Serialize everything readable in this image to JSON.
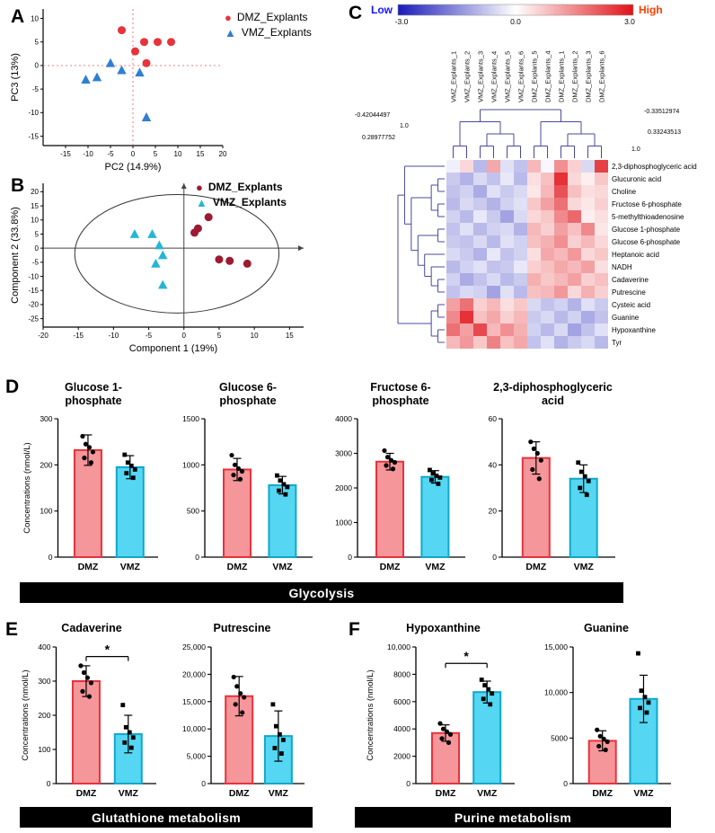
{
  "panels": {
    "a": "A",
    "b": "B",
    "c": "C",
    "d": "D",
    "e": "E",
    "f": "F"
  },
  "banners": {
    "glycolysis": "Glycolysis",
    "glutathione": "Glutathione metabolism",
    "purine": "Purine metabolism"
  },
  "colors": {
    "pca_dmz": "#e8323c",
    "pca_vmz": "#2f7fd1",
    "plsda_dmz": "#9b1b30",
    "plsda_vmz": "#25b6d2",
    "bar_dmz_fill": "#f5969a",
    "bar_dmz_stroke": "#e8323c",
    "bar_vmz_fill": "#55d6f2",
    "bar_vmz_stroke": "#0fa8cc",
    "heat_low": "#1a1ab8",
    "heat_high": "#e01218",
    "low_label": "#1414ff",
    "high_label": "#ff3d00",
    "dendrogram": "#4848a0"
  },
  "chart_data": [
    {
      "id": "pca",
      "type": "scatter",
      "xlabel": "PC2 (14.9%)",
      "ylabel": "PC3 (13%)",
      "xlim": [
        -20,
        20
      ],
      "ylim": [
        -17,
        12
      ],
      "xticks": [
        -15,
        -10,
        -5,
        0,
        5,
        10,
        15,
        20
      ],
      "yticks": [
        -15,
        -10,
        -5,
        0,
        5,
        10
      ],
      "origin": "dashed-red",
      "series": [
        {
          "name": "DMZ_Explants",
          "marker": "circle",
          "color": "#e8323c",
          "points": [
            [
              -2.5,
              7.5
            ],
            [
              0.5,
              3
            ],
            [
              2.5,
              5
            ],
            [
              5.5,
              5
            ],
            [
              8.5,
              5
            ],
            [
              3,
              0.5
            ]
          ]
        },
        {
          "name": "VMZ_Explants",
          "marker": "triangle",
          "color": "#2f7fd1",
          "points": [
            [
              -10.5,
              -3
            ],
            [
              -8,
              -2.5
            ],
            [
              -5,
              0.5
            ],
            [
              -2.5,
              -1
            ],
            [
              1.5,
              -1.5
            ],
            [
              3,
              -11
            ]
          ]
        }
      ]
    },
    {
      "id": "plsda",
      "type": "scatter",
      "xlabel": "Component 1 (19%)",
      "ylabel": "Component 2 (33.8%)",
      "xlim": [
        -20,
        17
      ],
      "ylim": [
        -28,
        23
      ],
      "xticks": [
        -20,
        -15,
        -10,
        -5,
        0,
        5,
        10,
        15
      ],
      "yticks": [
        -25,
        -20,
        -15,
        -10,
        -5,
        0,
        5,
        10,
        15,
        20
      ],
      "origin": "solid-gray",
      "ellipse": {
        "cx": -1,
        "cy": -2,
        "rx": 14.5,
        "ry": 21
      },
      "series": [
        {
          "name": "DMZ_Explants",
          "marker": "circle",
          "color": "#9b1b30",
          "points": [
            [
              1.5,
              5.5
            ],
            [
              2,
              7
            ],
            [
              3.5,
              11
            ],
            [
              5,
              -4
            ],
            [
              6.5,
              -4.5
            ],
            [
              9,
              -5.5
            ]
          ]
        },
        {
          "name": "VMZ_Explants",
          "marker": "triangle",
          "color": "#25b6d2",
          "points": [
            [
              -7,
              5
            ],
            [
              -4.5,
              5
            ],
            [
              -3.5,
              1
            ],
            [
              -3,
              -2.5
            ],
            [
              -4,
              -5.5
            ],
            [
              -3,
              -13
            ]
          ]
        }
      ]
    },
    {
      "id": "heatmap",
      "type": "heatmap",
      "colorbar": {
        "low_label": "Low",
        "high_label": "High",
        "ticks": [
          "-3.0",
          "0.0",
          "3.0"
        ],
        "min": -3,
        "max": 3
      },
      "columns": [
        "VMZ_Explants_1",
        "VMZ_Explants_2",
        "VMZ_Explants_3",
        "VMZ_Explants_4",
        "VMZ_Explants_5",
        "VMZ_Explants_6",
        "DMZ_Explants_5",
        "DMZ_Explants_4",
        "DMZ_Explants_1",
        "DMZ_Explants_2",
        "DMZ_Explants_3",
        "DMZ_Explants_6"
      ],
      "rows": [
        "2,3-diphosphoglyceric acid",
        "Glucuronic acid",
        "Choline",
        "Fructose 6-phosphate",
        "5-methylthioadenosine",
        "Glucose 1-phosphate",
        "Glucose 6-phosphate",
        "Heptanoic acid",
        "NADH",
        "Cadaverine",
        "Putrescine",
        "Cysteic acid",
        "Guanine",
        "Hypoxanthine",
        "Tyr"
      ],
      "matrix": [
        [
          -0.2,
          0.5,
          -0.9,
          1.1,
          -0.4,
          -0.8,
          0.9,
          -0.1,
          1.4,
          0.6,
          -0.5,
          2.4
        ],
        [
          -0.7,
          -1.0,
          -0.5,
          -0.8,
          -0.3,
          -0.9,
          0.4,
          0.8,
          2.6,
          0.5,
          0.2,
          0.7
        ],
        [
          -0.8,
          -0.6,
          -1.1,
          -0.4,
          -0.7,
          -0.5,
          0.3,
          0.9,
          2.2,
          0.8,
          0.4,
          0.5
        ],
        [
          -0.9,
          -0.5,
          -0.7,
          -1.0,
          -0.6,
          -0.4,
          0.7,
          1.2,
          1.8,
          0.5,
          0.3,
          0.6
        ],
        [
          -0.6,
          -0.9,
          -0.3,
          -0.7,
          -1.2,
          -0.5,
          0.5,
          0.7,
          1.5,
          1.9,
          0.2,
          0.4
        ],
        [
          -0.8,
          -0.4,
          -0.9,
          -0.6,
          -0.5,
          -1.0,
          0.9,
          0.6,
          1.2,
          0.8,
          1.5,
          0.3
        ],
        [
          -0.7,
          -0.8,
          -0.5,
          -0.9,
          -0.4,
          -0.6,
          0.8,
          1.0,
          1.4,
          0.6,
          0.9,
          0.5
        ],
        [
          -0.5,
          -0.7,
          -1.0,
          -0.3,
          -0.8,
          -0.6,
          0.4,
          1.1,
          0.9,
          1.3,
          0.5,
          0.7
        ],
        [
          -0.9,
          -0.6,
          -0.4,
          -0.8,
          -0.7,
          -0.3,
          0.6,
          0.8,
          1.1,
          0.9,
          1.2,
          0.4
        ],
        [
          -0.6,
          -1.1,
          -0.8,
          -0.5,
          -0.9,
          -0.7,
          1.0,
          0.7,
          0.9,
          1.2,
          0.6,
          0.8
        ],
        [
          -0.8,
          -0.5,
          -0.6,
          -1.2,
          -0.4,
          -0.9,
          0.8,
          0.9,
          1.3,
          0.5,
          1.0,
          0.6
        ],
        [
          1.2,
          1.8,
          0.6,
          0.9,
          0.4,
          0.7,
          -0.5,
          -0.8,
          -0.6,
          -1.0,
          -0.4,
          -0.7
        ],
        [
          1.5,
          2.6,
          0.8,
          1.1,
          0.6,
          0.9,
          -0.7,
          -0.5,
          -0.9,
          -0.6,
          -1.1,
          -0.8
        ],
        [
          1.8,
          1.2,
          2.3,
          0.9,
          1.4,
          1.0,
          -0.6,
          -0.9,
          -0.5,
          -1.2,
          -0.8,
          -0.4
        ],
        [
          0.9,
          1.3,
          0.7,
          1.6,
          0.8,
          1.1,
          -0.8,
          -0.4,
          -1.0,
          -0.7,
          -0.5,
          -0.9
        ]
      ],
      "col_tree": [
        [
          [
            0,
            1
          ],
          [
            [
              2,
              3
            ],
            [
              4,
              5
            ]
          ]
        ],
        [
          [
            6,
            7
          ],
          [
            [
              8,
              9
            ],
            [
              10,
              11
            ]
          ]
        ]
      ],
      "row_tree": [
        [
          0,
          [
            [
              [
                1,
                2
              ],
              [
                3,
                4
              ]
            ],
            [
              [
                5,
                6
              ],
              [
                7,
                [
                  8,
                  [
                    9,
                    10
                  ]
                ]
              ]
            ]
          ]
        ],
        [
          [
            11,
            12
          ],
          [
            13,
            14
          ]
        ]
      ],
      "scale_labels": {
        "left_top": "-0.42044497",
        "left_bottom": "0.28977752",
        "left_one": "1.0",
        "right_top": "-0.33512974",
        "right_mid": "0.33243513",
        "right_one": "1.0"
      }
    },
    {
      "id": "glucose1p",
      "type": "bar",
      "title": "Glucose 1-\nphosphate",
      "ylabel": "Concentrations (nmol/L)",
      "categories": [
        "DMZ",
        "VMZ"
      ],
      "values": [
        232,
        195
      ],
      "errors": [
        33,
        25
      ],
      "points": [
        [
          262,
          245,
          238,
          228,
          215,
          205
        ],
        [
          222,
          205,
          198,
          190,
          182,
          172
        ]
      ],
      "point_markers": [
        "circle",
        "square"
      ],
      "ylim": [
        0,
        300
      ],
      "yticks": [
        0,
        100,
        200,
        300
      ],
      "ytick_labels": [
        "0",
        "100",
        "200",
        "300"
      ]
    },
    {
      "id": "glucose6p",
      "type": "bar",
      "title": "Glucose 6-\nphosphate",
      "categories": [
        "DMZ",
        "VMZ"
      ],
      "values": [
        950,
        780
      ],
      "errors": [
        120,
        95
      ],
      "points": [
        [
          1105,
          1000,
          960,
          930,
          890,
          845
        ],
        [
          885,
          830,
          790,
          760,
          720,
          680
        ]
      ],
      "point_markers": [
        "circle",
        "square"
      ],
      "ylim": [
        0,
        1500
      ],
      "yticks": [
        0,
        500,
        1000,
        1500
      ],
      "ytick_labels": [
        "0",
        "500",
        "1000",
        "1500"
      ]
    },
    {
      "id": "fructose6p",
      "type": "bar",
      "title": "Fructose 6-\nphosphate",
      "categories": [
        "DMZ",
        "VMZ"
      ],
      "values": [
        2760,
        2320
      ],
      "errors": [
        240,
        180
      ],
      "points": [
        [
          3080,
          2890,
          2800,
          2740,
          2650,
          2550
        ],
        [
          2520,
          2420,
          2350,
          2300,
          2230,
          2120
        ]
      ],
      "point_markers": [
        "circle",
        "square"
      ],
      "ylim": [
        0,
        4000
      ],
      "yticks": [
        0,
        1000,
        2000,
        3000,
        4000
      ],
      "ytick_labels": [
        "0",
        "1000",
        "2000",
        "3000",
        "4000"
      ]
    },
    {
      "id": "dpg",
      "type": "bar",
      "title": "2,3-diphosphoglyceric\nacid",
      "categories": [
        "DMZ",
        "VMZ"
      ],
      "values": [
        43,
        34
      ],
      "errors": [
        7,
        6
      ],
      "points": [
        [
          50,
          47,
          45,
          42,
          38,
          34
        ],
        [
          41,
          37,
          35,
          33,
          30,
          27
        ]
      ],
      "point_markers": [
        "circle",
        "square"
      ],
      "ylim": [
        0,
        60
      ],
      "yticks": [
        0,
        20,
        40,
        60
      ],
      "ytick_labels": [
        "0",
        "20",
        "40",
        "60"
      ]
    },
    {
      "id": "cadaverine",
      "type": "bar",
      "title": "Cadaverine",
      "ylabel": "Concentrations (nmol/L)",
      "categories": [
        "DMZ",
        "VMZ"
      ],
      "values": [
        300,
        145
      ],
      "errors": [
        45,
        55
      ],
      "points": [
        [
          345,
          325,
          310,
          295,
          270,
          255
        ],
        [
          230,
          165,
          150,
          135,
          120,
          105
        ]
      ],
      "point_markers": [
        "circle",
        "square"
      ],
      "ylim": [
        0,
        400
      ],
      "yticks": [
        0,
        100,
        200,
        300,
        400
      ],
      "ytick_labels": [
        "0",
        "100",
        "200",
        "300",
        "400"
      ],
      "sig": {
        "label": "*",
        "y": 372
      }
    },
    {
      "id": "putrescine",
      "type": "bar",
      "title": "Putrescine",
      "categories": [
        "DMZ",
        "VMZ"
      ],
      "values": [
        16000,
        8700
      ],
      "errors": [
        3600,
        4600
      ],
      "points": [
        [
          19500,
          17800,
          16500,
          15800,
          14500,
          13000
        ],
        [
          14500,
          10500,
          9000,
          8000,
          6500,
          5500
        ]
      ],
      "point_markers": [
        "circle",
        "square"
      ],
      "ylim": [
        0,
        25000
      ],
      "yticks": [
        0,
        5000,
        10000,
        15000,
        20000,
        25000
      ],
      "ytick_labels": [
        "0",
        "5,000",
        "10,000",
        "15,000",
        "20,000",
        "25,000"
      ]
    },
    {
      "id": "hypoxanthine",
      "type": "bar",
      "title": "Hypoxanthine",
      "ylabel": "Concentrations (nmol/L)",
      "categories": [
        "DMZ",
        "VMZ"
      ],
      "values": [
        3700,
        6700
      ],
      "errors": [
        600,
        800
      ],
      "points": [
        [
          4400,
          4000,
          3800,
          3600,
          3300,
          3000
        ],
        [
          7600,
          7200,
          6900,
          6600,
          6200,
          5800
        ]
      ],
      "point_markers": [
        "circle",
        "square"
      ],
      "ylim": [
        0,
        10000
      ],
      "yticks": [
        0,
        2000,
        4000,
        6000,
        8000,
        10000
      ],
      "ytick_labels": [
        "0",
        "2000",
        "4000",
        "6000",
        "8000",
        "10,000"
      ],
      "sig": {
        "label": "*",
        "y": 8800
      }
    },
    {
      "id": "guanine",
      "type": "bar",
      "title": "Guanine",
      "categories": [
        "DMZ",
        "VMZ"
      ],
      "values": [
        4700,
        9300
      ],
      "errors": [
        1100,
        2600
      ],
      "points": [
        [
          5900,
          5200,
          4900,
          4600,
          4100,
          3700
        ],
        [
          14300,
          10200,
          9500,
          8900,
          8300,
          7800
        ]
      ],
      "point_markers": [
        "circle",
        "square"
      ],
      "ylim": [
        0,
        15000
      ],
      "yticks": [
        0,
        5000,
        10000,
        15000
      ],
      "ytick_labels": [
        "0",
        "5000",
        "10,000",
        "15,000"
      ]
    }
  ]
}
